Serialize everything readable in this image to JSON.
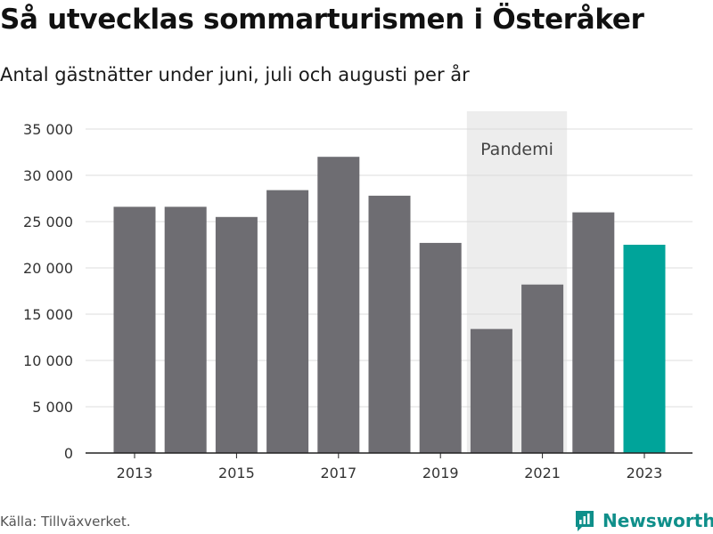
{
  "chart_data": {
    "type": "bar",
    "title": "Så utvecklas sommarturismen i Österåker",
    "subtitle": "Antal gästnätter under juni, juli och augusti per år",
    "categories": [
      2013,
      2014,
      2015,
      2016,
      2017,
      2018,
      2019,
      2020,
      2021,
      2022,
      2023
    ],
    "values": [
      26600,
      26600,
      25500,
      28400,
      32000,
      27800,
      22700,
      13400,
      18200,
      26000,
      22500
    ],
    "x_tick_labels": [
      "2013",
      "2015",
      "2017",
      "2019",
      "2021",
      "2023"
    ],
    "y_ticks": [
      0,
      5000,
      10000,
      15000,
      20000,
      25000,
      30000,
      35000
    ],
    "y_tick_labels": [
      "0",
      "5 000",
      "10 000",
      "15 000",
      "20 000",
      "25 000",
      "30 000",
      "35 000"
    ],
    "ylim": [
      0,
      35000
    ],
    "highlight": {
      "category": 2023,
      "color": "#00a49a"
    },
    "bar_color": "#6e6d72",
    "grid": true,
    "shaded_region": {
      "label": "Pandemi",
      "from": 2020,
      "to": 2021,
      "color": "#ededed"
    }
  },
  "footer": {
    "source": "Källa: Tillväxverket.",
    "brand": "Newsworthy",
    "brand_icon": "newsworthy-logo-icon",
    "brand_color": "#0f8f8a"
  }
}
